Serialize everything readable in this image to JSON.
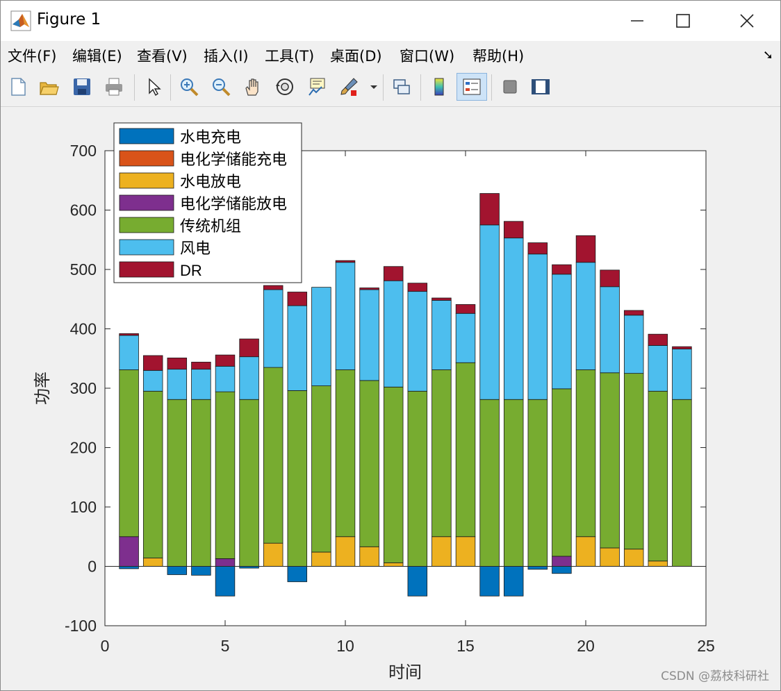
{
  "window": {
    "title": "Figure 1"
  },
  "menu": [
    "文件(F)",
    "编辑(E)",
    "查看(V)",
    "插入(I)",
    "工具(T)",
    "桌面(D)",
    "窗口(W)",
    "帮助(H)"
  ],
  "toolbar": {
    "icons": [
      "new-file-icon",
      "open-folder-icon",
      "save-icon",
      "print-icon",
      "pointer-icon",
      "zoom-in-icon",
      "zoom-out-icon",
      "pan-icon",
      "rotate-3d-icon",
      "data-cursor-icon",
      "brush-icon",
      "link-plot-icon",
      "colorbar-icon",
      "legend-icon",
      "hide-tools-icon",
      "show-tools-icon"
    ]
  },
  "watermark": "CSDN @荔枝科研社",
  "chart_data": {
    "type": "bar",
    "stacked": true,
    "xlabel": "时间",
    "ylabel": "功率",
    "xlim": [
      0,
      25
    ],
    "ylim": [
      -100,
      700
    ],
    "xticks": [
      0,
      5,
      10,
      15,
      20,
      25
    ],
    "yticks": [
      -100,
      0,
      100,
      200,
      300,
      400,
      500,
      600,
      700
    ],
    "grid": false,
    "legend_position": "top-left",
    "x": [
      1,
      2,
      3,
      4,
      5,
      6,
      7,
      8,
      9,
      10,
      11,
      12,
      13,
      14,
      15,
      16,
      17,
      18,
      19,
      20,
      21,
      22,
      23,
      24
    ],
    "series": [
      {
        "name": "水电充电",
        "color": "#0072BD",
        "values": [
          -4,
          0,
          -14,
          -15,
          -50,
          -3,
          0,
          -26,
          0,
          0,
          0,
          0,
          -50,
          0,
          0,
          -50,
          -50,
          -5,
          -12,
          0,
          0,
          0,
          0,
          0
        ]
      },
      {
        "name": "电化学储能充电",
        "color": "#D95319",
        "values": [
          0,
          0,
          0,
          0,
          0,
          0,
          0,
          0,
          0,
          0,
          0,
          0,
          0,
          0,
          0,
          0,
          0,
          0,
          0,
          0,
          0,
          0,
          0,
          0
        ]
      },
      {
        "name": "水电放电",
        "color": "#EDB120",
        "values": [
          0,
          14,
          0,
          0,
          0,
          0,
          39,
          0,
          24,
          50,
          33,
          6,
          0,
          50,
          50,
          0,
          0,
          0,
          0,
          50,
          31,
          29,
          9,
          0
        ]
      },
      {
        "name": "电化学储能放电",
        "color": "#7E2F8E",
        "values": [
          50,
          0,
          0,
          0,
          13,
          0,
          0,
          0,
          0,
          0,
          0,
          0,
          0,
          0,
          0,
          0,
          0,
          0,
          17,
          0,
          0,
          0,
          0,
          0
        ]
      },
      {
        "name": "传统机组",
        "color": "#77AC30",
        "values": [
          281,
          281,
          281,
          281,
          281,
          281,
          296,
          296,
          280,
          281,
          280,
          296,
          295,
          281,
          293,
          281,
          281,
          281,
          282,
          281,
          295,
          296,
          286,
          281
        ]
      },
      {
        "name": "风电",
        "color": "#4DBEEE",
        "values": [
          58,
          35,
          51,
          51,
          43,
          72,
          131,
          143,
          166,
          181,
          153,
          179,
          168,
          117,
          83,
          294,
          272,
          245,
          193,
          181,
          145,
          98,
          77,
          85
        ]
      },
      {
        "name": "DR",
        "color": "#A2142F",
        "values": [
          3,
          25,
          19,
          12,
          19,
          30,
          7,
          23,
          0,
          3,
          3,
          24,
          14,
          4,
          15,
          53,
          28,
          19,
          16,
          45,
          28,
          8,
          19,
          4
        ]
      }
    ]
  }
}
